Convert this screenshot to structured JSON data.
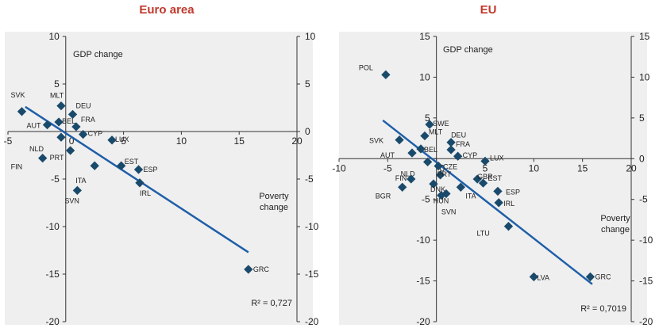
{
  "colors": {
    "title": "#c0392b",
    "marker": "#1a4a6b",
    "line": "#1f5fa8",
    "panel_bg": "#efefef",
    "axis": "#333333"
  },
  "chart_data": [
    {
      "type": "scatter",
      "title": "Euro area",
      "xlabel": "Poverty change",
      "ylabel": "GDP change",
      "xlim": [
        -5,
        20
      ],
      "ylim": [
        -20,
        10
      ],
      "xticks": [
        -5,
        0,
        5,
        10,
        15,
        20
      ],
      "xtick_labels": [
        "-5",
        "0",
        "5",
        "10",
        "15",
        "20"
      ],
      "yticks": [
        -20,
        -15,
        -10,
        -5,
        0,
        5,
        10
      ],
      "ytick_labels_left": [
        "-20",
        "-15",
        "-10",
        "-5",
        "",
        "5",
        "10"
      ],
      "ytick_labels_right": [
        "-20",
        "-15",
        "-10",
        "-5",
        "0",
        "5",
        "10"
      ],
      "r2_label": "R² = 0,727",
      "trend": {
        "x": [
          -3.5,
          15.8
        ],
        "y": [
          2.6,
          -12.7
        ]
      },
      "points": [
        {
          "label": "SVK",
          "x": -3.8,
          "y": 2.1
        },
        {
          "label": "AUT",
          "x": -1.6,
          "y": 0.7
        },
        {
          "label": "NLD",
          "x": -0.4,
          "y": -0.6
        },
        {
          "label": "FIN",
          "x": -2.0,
          "y": -2.8
        },
        {
          "label": "MLT",
          "x": -0.4,
          "y": 2.7
        },
        {
          "label": "BEL",
          "x": -0.6,
          "y": 1.0
        },
        {
          "label": "DEU",
          "x": 0.6,
          "y": 1.8
        },
        {
          "label": "FRA",
          "x": 0.9,
          "y": 0.5
        },
        {
          "label": "CYP",
          "x": 1.5,
          "y": -0.3
        },
        {
          "label": "PRT",
          "x": 0.4,
          "y": -2.0
        },
        {
          "label": "ITA",
          "x": 2.5,
          "y": -3.6
        },
        {
          "label": "SVN",
          "x": 1.0,
          "y": -6.2
        },
        {
          "label": "LUX",
          "x": 4.0,
          "y": -0.9
        },
        {
          "label": "EST",
          "x": 4.8,
          "y": -3.6
        },
        {
          "label": "ESP",
          "x": 6.3,
          "y": -4.0
        },
        {
          "label": "IRL",
          "x": 6.4,
          "y": -5.4
        },
        {
          "label": "GRC",
          "x": 15.8,
          "y": -14.5
        }
      ]
    },
    {
      "type": "scatter",
      "title": "EU",
      "xlabel": "Poverty change",
      "ylabel": "GDP change",
      "xlim": [
        -10,
        20
      ],
      "ylim": [
        -20,
        15
      ],
      "xticks": [
        -10,
        -5,
        0,
        5,
        10,
        15,
        20
      ],
      "xtick_labels": [
        "-10",
        "-5",
        "0",
        "5",
        "10",
        "15",
        "20"
      ],
      "yticks": [
        -20,
        -15,
        -10,
        -5,
        0,
        5,
        10,
        15
      ],
      "ytick_labels_left": [
        "-20",
        "-15",
        "-10",
        "-5",
        "",
        "5",
        "10",
        "15"
      ],
      "ytick_labels_right": [
        "-20",
        "-15",
        "-10",
        "-5",
        "0",
        "5",
        "10",
        "15"
      ],
      "r2_label": "R² = 0,7019",
      "trend": {
        "x": [
          -5.5,
          16.0
        ],
        "y": [
          4.7,
          -15.4
        ]
      },
      "points": [
        {
          "label": "POL",
          "x": -5.2,
          "y": 10.3
        },
        {
          "label": "SVK",
          "x": -3.8,
          "y": 2.3
        },
        {
          "label": "MLT",
          "x": -1.2,
          "y": 2.8
        },
        {
          "label": "SWE",
          "x": -0.7,
          "y": 4.2
        },
        {
          "label": "AUT",
          "x": -2.5,
          "y": 0.7
        },
        {
          "label": "BEL",
          "x": -1.6,
          "y": 1.2
        },
        {
          "label": "DEU",
          "x": 1.5,
          "y": 2.0
        },
        {
          "label": "FRA",
          "x": 1.5,
          "y": 1.1
        },
        {
          "label": "CYP",
          "x": 2.2,
          "y": 0.3
        },
        {
          "label": "NLD",
          "x": -0.9,
          "y": -0.4
        },
        {
          "label": "CZE",
          "x": 0.2,
          "y": -0.9
        },
        {
          "label": "FIN",
          "x": -2.6,
          "y": -2.5
        },
        {
          "label": "PRT",
          "x": 0.4,
          "y": -2.0
        },
        {
          "label": "DNK",
          "x": -0.3,
          "y": -3.1
        },
        {
          "label": "HUN",
          "x": 0.5,
          "y": -4.5
        },
        {
          "label": "BGR",
          "x": -3.5,
          "y": -3.5
        },
        {
          "label": "GBR",
          "x": 4.2,
          "y": -2.5
        },
        {
          "label": "LUX",
          "x": 5.0,
          "y": -0.3
        },
        {
          "label": "ITA",
          "x": 2.5,
          "y": -3.5
        },
        {
          "label": "SVN",
          "x": 1.0,
          "y": -4.3
        },
        {
          "label": "EST",
          "x": 4.8,
          "y": -3.0
        },
        {
          "label": "ESP",
          "x": 6.3,
          "y": -4.0
        },
        {
          "label": "IRL",
          "x": 6.4,
          "y": -5.4
        },
        {
          "label": "LTU",
          "x": 7.4,
          "y": -8.3
        },
        {
          "label": "LVA",
          "x": 10.0,
          "y": -14.5
        },
        {
          "label": "GRC",
          "x": 15.8,
          "y": -14.5
        }
      ]
    }
  ]
}
